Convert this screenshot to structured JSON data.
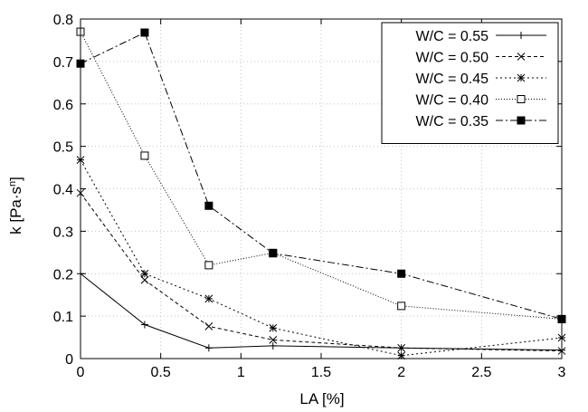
{
  "chart_data": {
    "type": "line",
    "xlabel": "LA [%]",
    "ylabel": "k [Pa·s",
    "ylabel_sup": "n",
    "ylabel_close": "]",
    "xlim": [
      0,
      3
    ],
    "ylim": [
      0,
      0.8
    ],
    "xticks": [
      {
        "value": 0,
        "label": "0"
      },
      {
        "value": 0.5,
        "label": "0.5"
      },
      {
        "value": 1,
        "label": "1"
      },
      {
        "value": 1.5,
        "label": "1.5"
      },
      {
        "value": 2,
        "label": "2"
      },
      {
        "value": 2.5,
        "label": "2.5"
      },
      {
        "value": 3,
        "label": "3"
      }
    ],
    "yticks": [
      {
        "value": 0,
        "label": "0"
      },
      {
        "value": 0.1,
        "label": "0.1"
      },
      {
        "value": 0.2,
        "label": "0.2"
      },
      {
        "value": 0.3,
        "label": "0.3"
      },
      {
        "value": 0.4,
        "label": "0.4"
      },
      {
        "value": 0.5,
        "label": "0.5"
      },
      {
        "value": 0.6,
        "label": "0.6"
      },
      {
        "value": 0.7,
        "label": "0.7"
      },
      {
        "value": 0.8,
        "label": "0.8"
      }
    ],
    "grid": true,
    "legend_position": "top-right",
    "x": [
      0,
      0.4,
      0.8,
      1.2,
      2,
      3
    ],
    "series": [
      {
        "name": "W/C = 0.55",
        "marker": "plus",
        "dash": "solid",
        "values": [
          0.2,
          0.08,
          0.025,
          0.03,
          0.025,
          0.02
        ]
      },
      {
        "name": "W/C = 0.50",
        "marker": "cross",
        "dash": "dashed",
        "values": [
          0.39,
          0.185,
          0.076,
          0.044,
          0.025,
          0.018
        ]
      },
      {
        "name": "W/C = 0.45",
        "marker": "star",
        "dash": "dotted",
        "values": [
          0.468,
          0.2,
          0.141,
          0.072,
          0.007,
          0.049
        ]
      },
      {
        "name": "W/C = 0.40",
        "marker": "open-square",
        "dash": "fine-dotted",
        "values": [
          0.77,
          0.478,
          0.22,
          0.249,
          0.124,
          0.093
        ]
      },
      {
        "name": "W/C = 0.35",
        "marker": "filled-square",
        "dash": "dash-dot",
        "values": [
          0.695,
          0.768,
          0.36,
          0.248,
          0.2,
          0.093
        ]
      }
    ]
  }
}
